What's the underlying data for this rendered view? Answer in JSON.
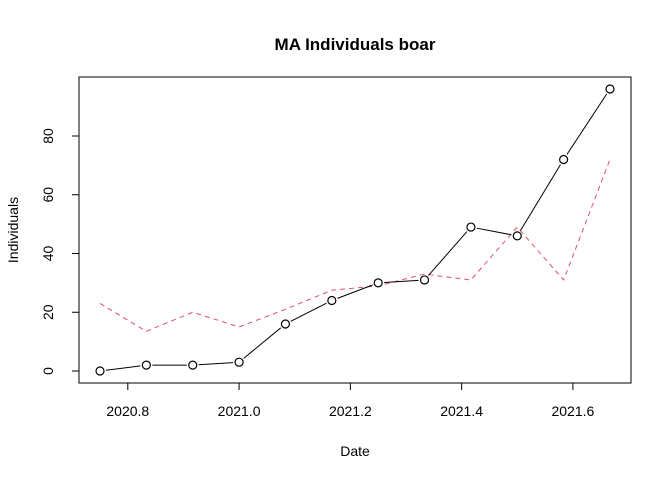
{
  "chart_data": {
    "type": "line",
    "title": "MA Individuals boar",
    "xlabel": "Date",
    "ylabel": "Individuals",
    "xlim": [
      2020.75,
      2021.6667
    ],
    "ylim": [
      0,
      96
    ],
    "x_ticks": [
      2020.8,
      2021.0,
      2021.2,
      2021.4,
      2021.6
    ],
    "x_tick_labels": [
      "2020.8",
      "2021.0",
      "2021.2",
      "2021.4",
      "2021.6"
    ],
    "y_ticks": [
      0,
      20,
      40,
      60,
      80
    ],
    "y_tick_labels": [
      "0",
      "20",
      "40",
      "60",
      "80"
    ],
    "grid": false,
    "x": [
      2020.75,
      2020.8333,
      2020.9167,
      2021.0,
      2021.0833,
      2021.1667,
      2021.25,
      2021.3333,
      2021.4167,
      2021.5,
      2021.5833,
      2021.6667
    ],
    "series": [
      {
        "style": "points-and-lines",
        "color": "#000000",
        "values": [
          0,
          2,
          2,
          3,
          16,
          24,
          30,
          31,
          49,
          46,
          72,
          96
        ]
      },
      {
        "style": "dashed",
        "color": "#DF536B",
        "values": [
          23,
          13.5,
          20,
          15,
          21,
          27.5,
          29,
          33,
          31,
          49,
          31,
          72
        ]
      }
    ]
  }
}
